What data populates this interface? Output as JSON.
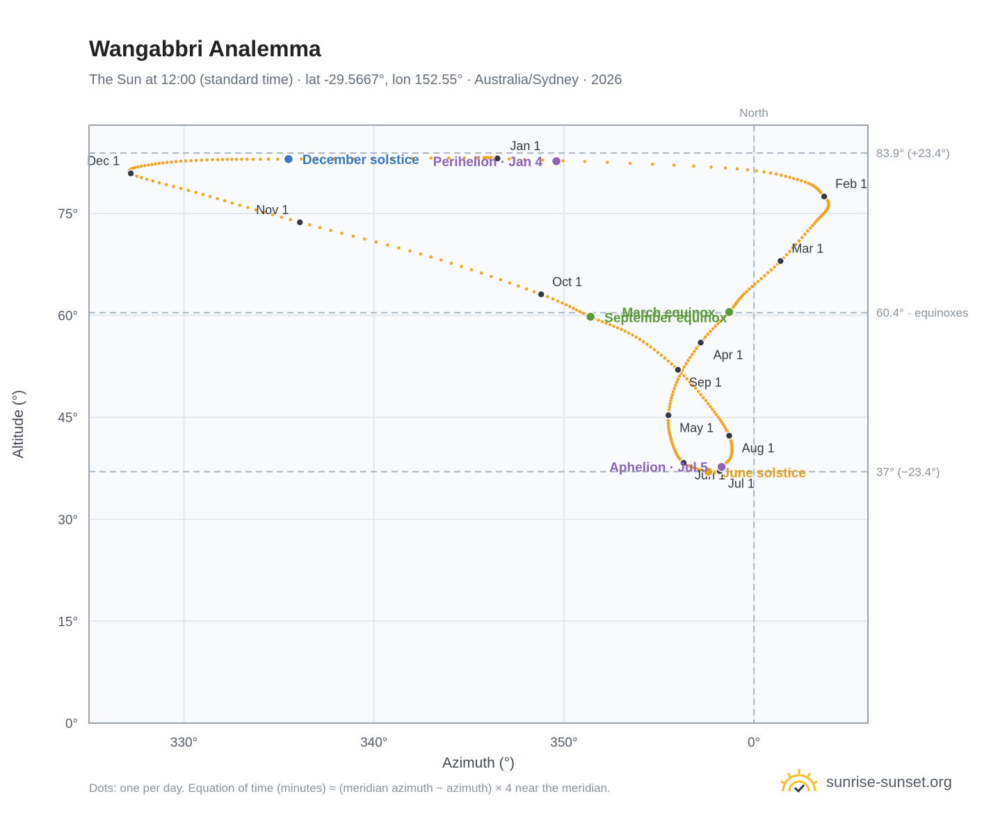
{
  "header": {
    "title": "Wangabbri Analemma",
    "subtitle": "The Sun at 12:00 (standard time) · lat -29.5667°, lon 152.55° · Australia/Sydney · 2026"
  },
  "footer": {
    "note": "Dots: one per day. Equation of time (minutes) ≈ (meridian azimuth − azimuth) × 4 near the meridian.",
    "brand": "sunrise-sunset.org"
  },
  "colors": {
    "path": "#f2a523",
    "month_marker": "#333a44",
    "solstice_december": "#3a78c0",
    "solstice_june": "#e0a020",
    "equinox": "#5a9a3a",
    "apsis": "#8f63b8",
    "grid": "#e3e8ee",
    "plot_background": "#f8fafc",
    "reference_line": "#aab6c2"
  },
  "chart_data": {
    "type": "scatter",
    "xlabel": "Azimuth (°)",
    "ylabel": "Altitude (°)",
    "xlim": [
      -35,
      6
    ],
    "ylim": [
      0,
      88
    ],
    "x_ticks": [
      {
        "value": -30,
        "label": "330°"
      },
      {
        "value": -20,
        "label": "340°"
      },
      {
        "value": -10,
        "label": "350°"
      },
      {
        "value": 0,
        "label": "0°"
      }
    ],
    "y_ticks": [
      {
        "value": 0,
        "label": "0°"
      },
      {
        "value": 15,
        "label": "15°"
      },
      {
        "value": 30,
        "label": "30°"
      },
      {
        "value": 45,
        "label": "45°"
      },
      {
        "value": 60,
        "label": "60°"
      },
      {
        "value": 75,
        "label": "75°"
      }
    ],
    "grid": true,
    "meridian": {
      "x": 0,
      "label": "North"
    },
    "reference_lines": [
      {
        "y": 83.9,
        "label": "83.9° (+23.4°)"
      },
      {
        "y": 60.4,
        "label": "60.4° · equinoxes"
      },
      {
        "y": 37.0,
        "label": "37° (−23.4°)"
      }
    ],
    "month_markers": [
      {
        "label": "Jan 1",
        "azimuth": -13.5,
        "altitude": 83.1
      },
      {
        "label": "Feb 1",
        "azimuth": 3.7,
        "altitude": 77.5
      },
      {
        "label": "Mar 1",
        "azimuth": 1.4,
        "altitude": 68.0
      },
      {
        "label": "Apr 1",
        "azimuth": -2.8,
        "altitude": 56.0
      },
      {
        "label": "May 1",
        "azimuth": -4.5,
        "altitude": 45.3
      },
      {
        "label": "Jun 1",
        "azimuth": -3.7,
        "altitude": 38.3
      },
      {
        "label": "Jul 1",
        "azimuth": -1.8,
        "altitude": 37.1
      },
      {
        "label": "Aug 1",
        "azimuth": -1.3,
        "altitude": 42.3
      },
      {
        "label": "Sep 1",
        "azimuth": -4.0,
        "altitude": 52.0
      },
      {
        "label": "Oct 1",
        "azimuth": -11.2,
        "altitude": 63.1
      },
      {
        "label": "Nov 1",
        "azimuth": -23.9,
        "altitude": 73.7
      },
      {
        "label": "Dec 1",
        "azimuth": -32.8,
        "altitude": 80.9
      }
    ],
    "events": [
      {
        "label": "December solstice",
        "azimuth": -24.5,
        "altitude": 83.0,
        "color_key": "solstice_december"
      },
      {
        "label": "Perihelion · Jan 4",
        "azimuth": -10.4,
        "altitude": 82.7,
        "color_key": "apsis"
      },
      {
        "label": "March equinox",
        "azimuth": -1.3,
        "altitude": 60.5,
        "color_key": "equinox"
      },
      {
        "label": "September equinox",
        "azimuth": -8.6,
        "altitude": 59.8,
        "color_key": "equinox"
      },
      {
        "label": "June solstice",
        "azimuth": -2.4,
        "altitude": 37.0,
        "color_key": "solstice_june"
      },
      {
        "label": "Aphelion · Jul 5",
        "azimuth": -1.7,
        "altitude": 37.7,
        "color_key": "apsis"
      }
    ],
    "series": [
      {
        "path_control_points": [
          {
            "date": "Jan 1",
            "azimuth": -13.5,
            "altitude": 83.1
          },
          {
            "date": "Jan 15",
            "azimuth": -1.5,
            "altitude": 81.7
          },
          {
            "date": "Jan 24",
            "azimuth": 2.5,
            "altitude": 79.8
          },
          {
            "date": "Feb 1",
            "azimuth": 3.7,
            "altitude": 77.5
          },
          {
            "date": "Feb 8",
            "azimuth": 3.9,
            "altitude": 75.9
          },
          {
            "date": "Feb 15",
            "azimuth": 3.2,
            "altitude": 73.6
          },
          {
            "date": "Mar 1",
            "azimuth": 1.4,
            "altitude": 68.0
          },
          {
            "date": "Mar 15",
            "azimuth": -0.5,
            "altitude": 63.2
          },
          {
            "date": "Mar 20",
            "azimuth": -1.3,
            "altitude": 60.5
          },
          {
            "date": "Apr 1",
            "azimuth": -2.8,
            "altitude": 56.0
          },
          {
            "date": "Apr 15",
            "azimuth": -4.0,
            "altitude": 50.6
          },
          {
            "date": "May 1",
            "azimuth": -4.5,
            "altitude": 45.3
          },
          {
            "date": "May 15",
            "azimuth": -4.3,
            "altitude": 41.2
          },
          {
            "date": "Jun 1",
            "azimuth": -3.7,
            "altitude": 38.3
          },
          {
            "date": "Jun 21",
            "azimuth": -2.4,
            "altitude": 37.0
          },
          {
            "date": "Jul 1",
            "azimuth": -1.8,
            "altitude": 37.1
          },
          {
            "date": "Jul 5",
            "azimuth": -1.7,
            "altitude": 37.7
          },
          {
            "date": "Jul 15",
            "azimuth": -1.2,
            "altitude": 39.3
          },
          {
            "date": "Aug 1",
            "azimuth": -1.3,
            "altitude": 42.3
          },
          {
            "date": "Aug 15",
            "azimuth": -2.3,
            "altitude": 46.6
          },
          {
            "date": "Sep 1",
            "azimuth": -4.0,
            "altitude": 52.0
          },
          {
            "date": "Sep 15",
            "azimuth": -6.2,
            "altitude": 56.8
          },
          {
            "date": "Sep 23",
            "azimuth": -8.6,
            "altitude": 59.8
          },
          {
            "date": "Oct 1",
            "azimuth": -11.2,
            "altitude": 63.1
          },
          {
            "date": "Oct 15",
            "azimuth": -17.0,
            "altitude": 68.6
          },
          {
            "date": "Nov 1",
            "azimuth": -23.9,
            "altitude": 73.7
          },
          {
            "date": "Nov 15",
            "azimuth": -29.0,
            "altitude": 77.8
          },
          {
            "date": "Dec 1",
            "azimuth": -32.8,
            "altitude": 80.9
          },
          {
            "date": "Dec 8",
            "azimuth": -31.5,
            "altitude": 82.3
          },
          {
            "date": "Dec 15",
            "azimuth": -28.5,
            "altitude": 82.9
          },
          {
            "date": "Dec 21",
            "azimuth": -24.5,
            "altitude": 83.0
          },
          {
            "date": "Dec 31",
            "azimuth": -14.0,
            "altitude": 83.2
          }
        ]
      }
    ]
  }
}
